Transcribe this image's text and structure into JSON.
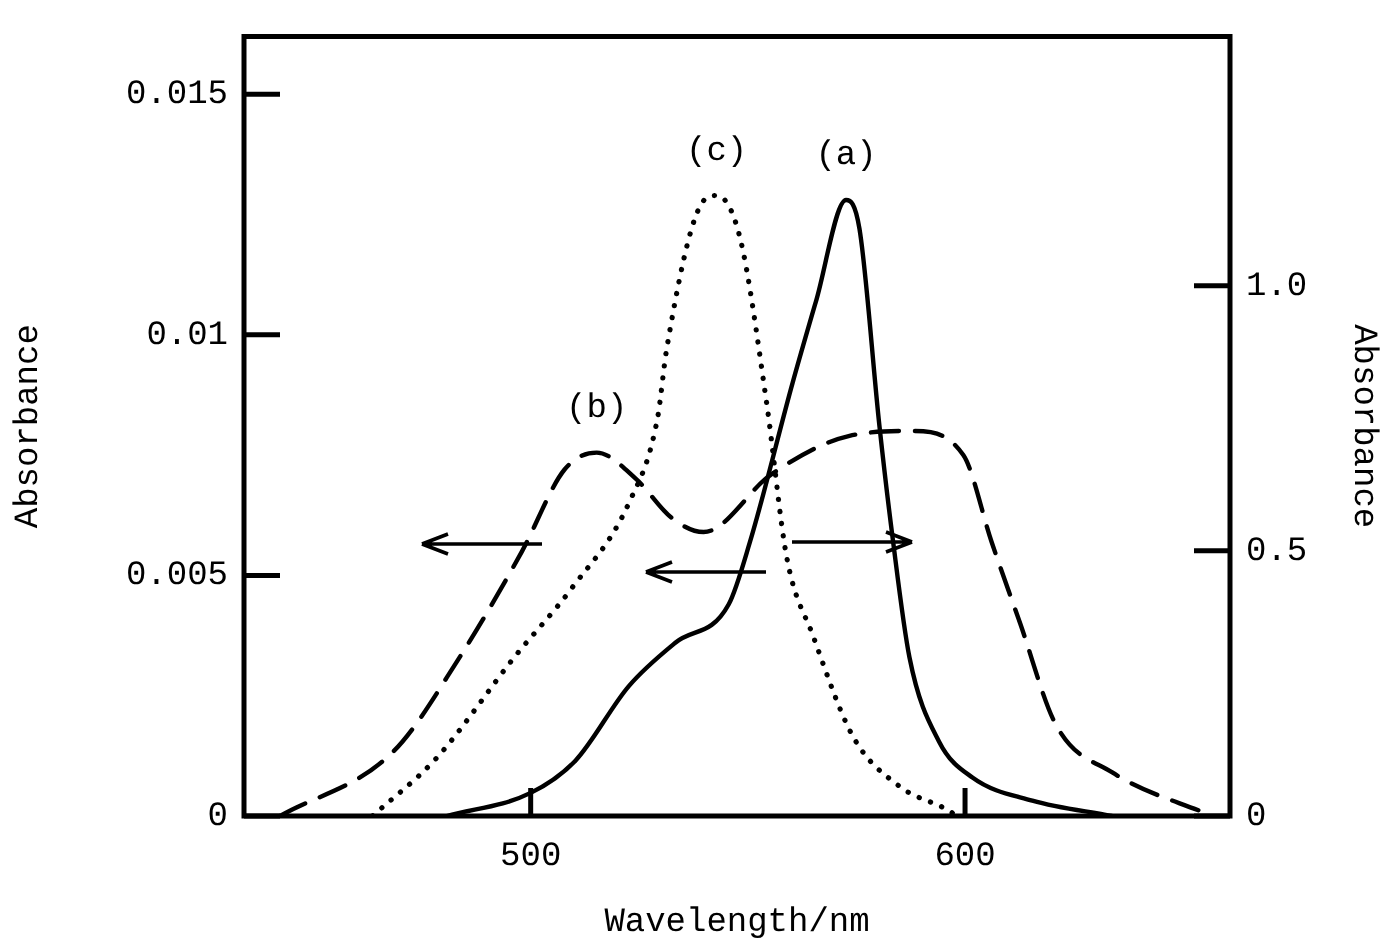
{
  "chart_data": {
    "type": "line",
    "xlabel": "Wavelength/nm",
    "ylabel": "Absorbance",
    "y2label": "Absorbance",
    "xlim": [
      434,
      661
    ],
    "xticks": [
      500,
      600
    ],
    "ylim": [
      0,
      0.0162
    ],
    "yticks": [
      0,
      0.005,
      0.01,
      0.015
    ],
    "y2lim": [
      0,
      1.47
    ],
    "y2ticks": [
      0,
      0.5,
      {
        "value": 1,
        "label": "1.0"
      }
    ],
    "grid": false,
    "legend": false,
    "marker": "none",
    "series": [
      {
        "color": "#000000",
        "line_style": "solid",
        "axis": "y",
        "x": [
          480.7,
          500,
          510.3,
          522.6,
          533.3,
          545.6,
          550.5,
          560.3,
          565.7,
          572.6,
          575.7,
          580.3,
          583.3,
          587.2,
          594,
          601.7,
          615.5,
          633.8
        ],
        "values": [
          0,
          0.00048,
          0.00115,
          0.0027,
          0.0036,
          0.0044,
          0.0057,
          0.009,
          0.0107,
          0.0128,
          0.0122,
          0.0081,
          0.0058,
          0.0033,
          0.00155,
          0.0008,
          0.00032,
          0
        ]
      },
      {
        "color": "#000000",
        "line_style": "dashed",
        "axis": "y",
        "x": [
          442.3,
          468.5,
          483.3,
          498,
          507.8,
          515.2,
          524.3,
          532.4,
          539.8,
          555.4,
          573.4,
          588.1,
          599.6,
          606.1,
          612.7,
          620.9,
          634,
          656.9
        ],
        "values": [
          0,
          0.00135,
          0.00325,
          0.0055,
          0.0072,
          0.00755,
          0.007,
          0.0062,
          0.0059,
          0.0071,
          0.0079,
          0.008,
          0.0075,
          0.0057,
          0.004,
          0.0019,
          0.0009,
          0
        ]
      },
      {
        "color": "#000000",
        "line_style": "dotted",
        "axis": "y2",
        "x": [
          463.6,
          478.4,
          496.3,
          509.5,
          522.6,
          529.2,
          531.3,
          539,
          542.8,
          548.2,
          554.3,
          558.9,
          565,
          574.2,
          584.9,
          596.3,
          598
        ],
        "values": [
          0,
          0.11,
          0.3,
          0.43,
          0.59,
          0.75,
          0.88,
          1.15,
          1.17,
          1.09,
          0.78,
          0.49,
          0.34,
          0.15,
          0.056,
          0.01,
          0
        ]
      }
    ],
    "annotations": [
      "(a)",
      "(b)",
      "(c)"
    ]
  }
}
